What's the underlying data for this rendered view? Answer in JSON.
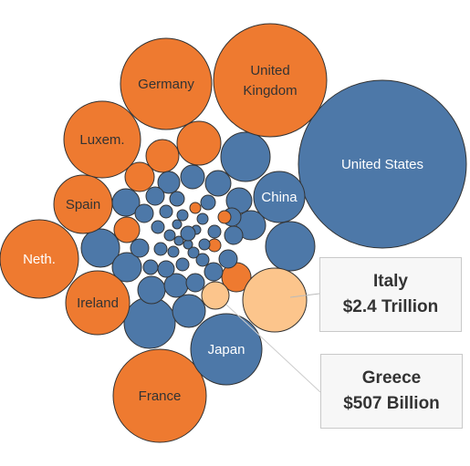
{
  "chart_data": {
    "type": "packed-bubble",
    "color_legend": {
      "orange": "#ee7a30",
      "blue": "#4d78a8",
      "highlight": "#fcc58c"
    },
    "labeled_bubbles": [
      {
        "name": "United States",
        "group": "blue"
      },
      {
        "name": "United Kingdom",
        "label_lines": [
          "United",
          "Kingdom"
        ],
        "group": "orange"
      },
      {
        "name": "Germany",
        "group": "orange"
      },
      {
        "name": "France",
        "group": "orange"
      },
      {
        "name": "Japan",
        "group": "blue"
      },
      {
        "name": "China",
        "group": "blue"
      },
      {
        "name": "Neth.",
        "group": "orange"
      },
      {
        "name": "Luxem.",
        "group": "orange"
      },
      {
        "name": "Ireland",
        "group": "orange"
      },
      {
        "name": "Spain",
        "group": "orange"
      },
      {
        "name": "Italy",
        "group": "highlight"
      },
      {
        "name": "Greece",
        "group": "highlight"
      }
    ],
    "annotations": [
      {
        "id": "italy",
        "country": "Italy",
        "value": "$2.4 Trillion"
      },
      {
        "id": "greece",
        "country": "Greece",
        "value": "$507 Billion"
      }
    ]
  }
}
